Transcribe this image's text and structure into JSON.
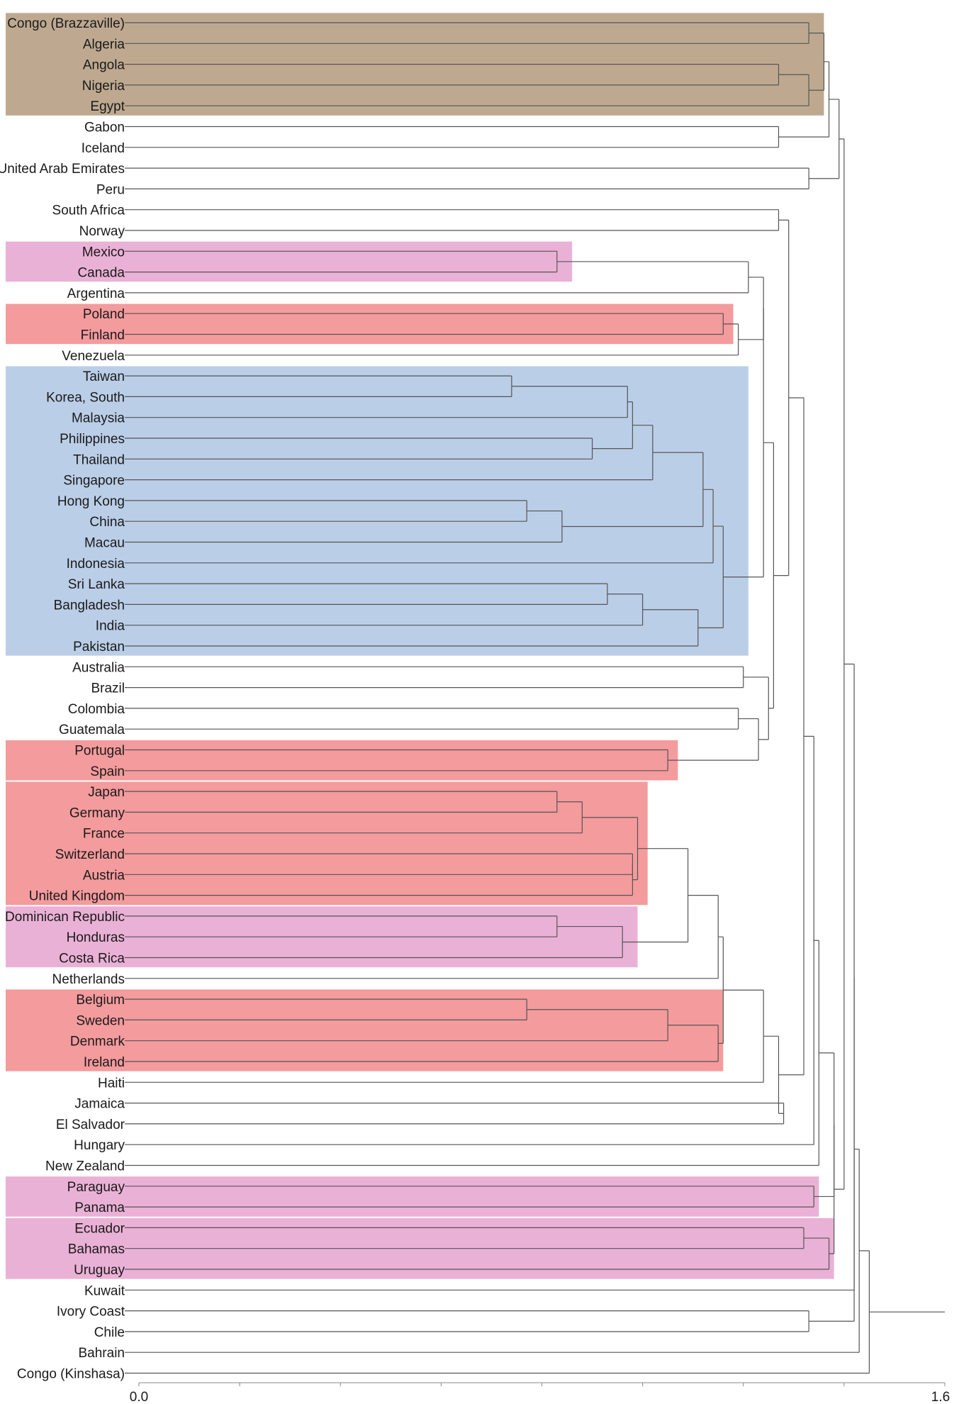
{
  "chart_data": {
    "type": "dendrogram",
    "orientation": "horizontal",
    "xlim": [
      0.0,
      1.6
    ],
    "xticks": [
      "0.0",
      "1.6"
    ],
    "grid": false,
    "colors": {
      "brown": "#b39a7c",
      "pink": "#e6a3cf",
      "red": "#f28a8c",
      "blue": "#afc6e3",
      "line": "#555555"
    },
    "leaves": [
      "Congo (Brazzaville)",
      "Algeria",
      "Angola",
      "Nigeria",
      "Egypt",
      "Gabon",
      "Iceland",
      "United Arab Emirates",
      "Peru",
      "South Africa",
      "Norway",
      "Mexico",
      "Canada",
      "Argentina",
      "Poland",
      "Finland",
      "Venezuela",
      "Taiwan",
      "Korea, South",
      "Malaysia",
      "Philippines",
      "Thailand",
      "Singapore",
      "Hong Kong",
      "China",
      "Macau",
      "Indonesia",
      "Sri Lanka",
      "Bangladesh",
      "India",
      "Pakistan",
      "Australia",
      "Brazil",
      "Colombia",
      "Guatemala",
      "Portugal",
      "Spain",
      "Japan",
      "Germany",
      "France",
      "Switzerland",
      "Austria",
      "United Kingdom",
      "Dominican Republic",
      "Honduras",
      "Costa Rica",
      "Netherlands",
      "Belgium",
      "Sweden",
      "Denmark",
      "Ireland",
      "Haiti",
      "Jamaica",
      "El Salvador",
      "Hungary",
      "New Zealand",
      "Paraguay",
      "Panama",
      "Ecuador",
      "Bahamas",
      "Uruguay",
      "Kuwait",
      "Ivory Coast",
      "Chile",
      "Bahrain",
      "Congo (Kinshasa)"
    ],
    "highlight_groups": [
      {
        "first": 0,
        "last": 4,
        "color": "brown",
        "extent": 1.36
      },
      {
        "first": 11,
        "last": 12,
        "color": "pink",
        "extent": 0.86
      },
      {
        "first": 14,
        "last": 15,
        "color": "red",
        "extent": 1.18
      },
      {
        "first": 17,
        "last": 30,
        "color": "blue",
        "extent": 1.21
      },
      {
        "first": 35,
        "last": 36,
        "color": "red",
        "extent": 1.07
      },
      {
        "first": 37,
        "last": 42,
        "color": "red",
        "extent": 1.01
      },
      {
        "first": 43,
        "last": 45,
        "color": "pink",
        "extent": 0.99
      },
      {
        "first": 47,
        "last": 50,
        "color": "red",
        "extent": 1.16
      },
      {
        "first": 56,
        "last": 57,
        "color": "pink",
        "extent": 1.35
      },
      {
        "first": 58,
        "last": 60,
        "color": "pink",
        "extent": 1.38
      }
    ],
    "merges": [
      {
        "id": "c1",
        "a": 0,
        "b": 1,
        "h": 1.33
      },
      {
        "id": "c2",
        "a": 2,
        "b": 3,
        "h": 1.27
      },
      {
        "id": "c3",
        "a": "c2",
        "b": 4,
        "h": 1.33
      },
      {
        "id": "c4",
        "a": "c1",
        "b": "c3",
        "h": 1.36
      },
      {
        "id": "c5",
        "a": 5,
        "b": 6,
        "h": 1.27
      },
      {
        "id": "c6",
        "a": "c4",
        "b": "c5",
        "h": 1.37
      },
      {
        "id": "c7",
        "a": 7,
        "b": 8,
        "h": 1.33
      },
      {
        "id": "c8",
        "a": 9,
        "b": 10,
        "h": 1.27
      },
      {
        "id": "c9",
        "a": 11,
        "b": 12,
        "h": 0.83
      },
      {
        "id": "c10",
        "a": "c9",
        "b": 13,
        "h": 1.21
      },
      {
        "id": "c11",
        "a": 14,
        "b": 15,
        "h": 1.16
      },
      {
        "id": "c12",
        "a": "c11",
        "b": 16,
        "h": 1.19
      },
      {
        "id": "c13",
        "a": "c10",
        "b": "c12",
        "h": 1.24
      },
      {
        "id": "c14",
        "a": 17,
        "b": 18,
        "h": 0.74
      },
      {
        "id": "c15",
        "a": "c14",
        "b": 19,
        "h": 0.97
      },
      {
        "id": "c16",
        "a": 20,
        "b": 21,
        "h": 0.9
      },
      {
        "id": "c17",
        "a": "c15",
        "b": "c16",
        "h": 0.98
      },
      {
        "id": "c18",
        "a": "c17",
        "b": 22,
        "h": 1.02
      },
      {
        "id": "c19",
        "a": 23,
        "b": 24,
        "h": 0.77
      },
      {
        "id": "c20",
        "a": "c19",
        "b": 25,
        "h": 0.84
      },
      {
        "id": "c21",
        "a": "c18",
        "b": "c20",
        "h": 1.12
      },
      {
        "id": "c22",
        "a": "c21",
        "b": 26,
        "h": 1.14
      },
      {
        "id": "c23",
        "a": 27,
        "b": 28,
        "h": 0.93
      },
      {
        "id": "c24",
        "a": "c23",
        "b": 29,
        "h": 1.0
      },
      {
        "id": "c25",
        "a": "c24",
        "b": 30,
        "h": 1.11
      },
      {
        "id": "c26",
        "a": "c22",
        "b": "c25",
        "h": 1.16
      },
      {
        "id": "c27",
        "a": "c13",
        "b": "c26",
        "h": 1.24
      },
      {
        "id": "c28",
        "a": 31,
        "b": 32,
        "h": 1.2
      },
      {
        "id": "c29",
        "a": 33,
        "b": 34,
        "h": 1.19
      },
      {
        "id": "c30",
        "a": 35,
        "b": 36,
        "h": 1.05
      },
      {
        "id": "c31",
        "a": "c29",
        "b": "c30",
        "h": 1.23
      },
      {
        "id": "c32",
        "a": "c28",
        "b": "c31",
        "h": 1.25
      },
      {
        "id": "c33",
        "a": "c27",
        "b": "c32",
        "h": 1.26
      },
      {
        "id": "c34",
        "a": "c8",
        "b": "c33",
        "h": 1.29
      },
      {
        "id": "c35",
        "a": 37,
        "b": 38,
        "h": 0.83
      },
      {
        "id": "c36",
        "a": "c35",
        "b": 39,
        "h": 0.88
      },
      {
        "id": "c37",
        "a": 40,
        "b": 41,
        "h": 0.98
      },
      {
        "id": "c38",
        "a": 42,
        "b": "c37",
        "h": 0.98
      },
      {
        "id": "c39",
        "a": "c36",
        "b": "c38",
        "h": 0.99
      },
      {
        "id": "c40",
        "a": 43,
        "b": 44,
        "h": 0.83
      },
      {
        "id": "c41",
        "a": "c40",
        "b": 45,
        "h": 0.96
      },
      {
        "id": "c42",
        "a": "c39",
        "b": "c41",
        "h": 1.09
      },
      {
        "id": "c43",
        "a": "c42",
        "b": 46,
        "h": 1.15
      },
      {
        "id": "c44",
        "a": 47,
        "b": 48,
        "h": 0.77
      },
      {
        "id": "c45",
        "a": "c44",
        "b": 49,
        "h": 1.05
      },
      {
        "id": "c46",
        "a": "c45",
        "b": 50,
        "h": 1.15
      },
      {
        "id": "c47",
        "a": "c43",
        "b": "c46",
        "h": 1.16
      },
      {
        "id": "c48",
        "a": "c47",
        "b": 51,
        "h": 1.24
      },
      {
        "id": "c49",
        "a": 52,
        "b": 53,
        "h": 1.28
      },
      {
        "id": "c50",
        "a": "c48",
        "b": "c49",
        "h": 1.27
      },
      {
        "id": "c51",
        "a": "c34",
        "b": "c50",
        "h": 1.32
      },
      {
        "id": "c52",
        "a": "c51",
        "b": 54,
        "h": 1.34
      },
      {
        "id": "c53",
        "a": "c52",
        "b": 55,
        "h": 1.35
      },
      {
        "id": "c54",
        "a": 56,
        "b": 57,
        "h": 1.34
      },
      {
        "id": "c55",
        "a": "c53",
        "b": "c54",
        "h": 1.38
      },
      {
        "id": "c56",
        "a": 58,
        "b": 59,
        "h": 1.32
      },
      {
        "id": "c57",
        "a": "c56",
        "b": 60,
        "h": 1.37
      },
      {
        "id": "c58",
        "a": "c55",
        "b": "c57",
        "h": 1.38
      },
      {
        "id": "c59",
        "a": "c7",
        "b": "c6",
        "h": 1.39
      },
      {
        "id": "c60",
        "a": "c59",
        "b": "c58",
        "h": 1.4
      },
      {
        "id": "c61",
        "a": "c60",
        "b": 61,
        "h": 1.42
      },
      {
        "id": "c62",
        "a": 62,
        "b": 63,
        "h": 1.33
      },
      {
        "id": "c63",
        "a": "c61",
        "b": "c62",
        "h": 1.42
      },
      {
        "id": "c64",
        "a": "c63",
        "b": 64,
        "h": 1.43
      },
      {
        "id": "c65",
        "a": "c64",
        "b": 65,
        "h": 1.45
      }
    ],
    "root_stub": 1.6
  }
}
